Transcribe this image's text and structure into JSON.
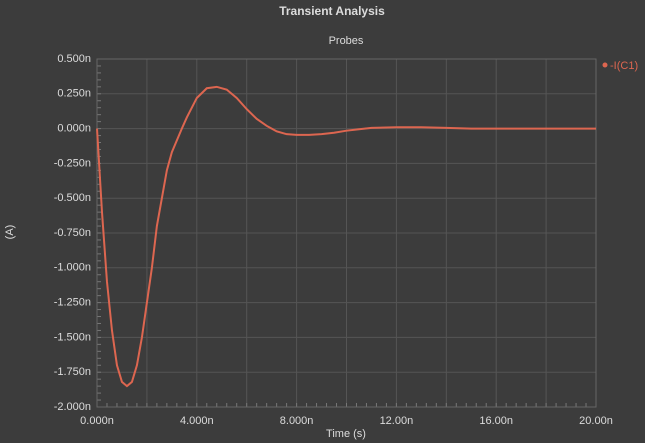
{
  "chart_data": {
    "type": "line",
    "title": "Transient Analysis",
    "subtitle": "Probes",
    "x_label": "Time (s)",
    "y_label": "(A)",
    "x": [
      0,
      2e-10,
      4e-10,
      6e-10,
      8e-10,
      1e-09,
      1.2e-09,
      1.4e-09,
      1.6e-09,
      1.8e-09,
      2e-09,
      2.2e-09,
      2.4e-09,
      2.8e-09,
      3e-09,
      3.4e-09,
      3.6e-09,
      4e-09,
      4.4e-09,
      4.8e-09,
      5.2e-09,
      5.6e-09,
      6e-09,
      6.4e-09,
      6.8e-09,
      7.2e-09,
      7.6e-09,
      8e-09,
      8.5e-09,
      9e-09,
      9.5e-09,
      1e-08,
      1.05e-08,
      1.1e-08,
      1.2e-08,
      1.3e-08,
      1.4e-08,
      1.5e-08,
      2e-08
    ],
    "series": [
      {
        "name": "-I(C1)",
        "color": "#dd6650",
        "values": [
          0,
          -6e-10,
          -1.1e-09,
          -1.45e-09,
          -1.7e-09,
          -1.82e-09,
          -1.85e-09,
          -1.82e-09,
          -1.7e-09,
          -1.5e-09,
          -1.25e-09,
          -1e-09,
          -7e-10,
          -3e-10,
          -1.7e-10,
          0,
          8e-11,
          2.2e-10,
          2.9e-10,
          3e-10,
          2.8e-10,
          2.2e-10,
          1.4e-10,
          7e-11,
          2e-11,
          -2e-11,
          -4e-11,
          -4.5e-11,
          -4.5e-11,
          -4e-11,
          -3e-11,
          -1.5e-11,
          -5e-12,
          5e-12,
          1e-11,
          1e-11,
          5e-12,
          0,
          0
        ]
      }
    ],
    "xlim": [
      0,
      2e-08
    ],
    "ylim": [
      -2e-09,
      5e-10
    ],
    "xticks": [
      {
        "value": 0,
        "label": "0.000n"
      },
      {
        "value": 4e-09,
        "label": "4.000n"
      },
      {
        "value": 8e-09,
        "label": "8.000n"
      },
      {
        "value": 1.2e-08,
        "label": "12.00n"
      },
      {
        "value": 1.6e-08,
        "label": "16.00n"
      },
      {
        "value": 2e-08,
        "label": "20.00n"
      }
    ],
    "yticks": [
      {
        "value": 5e-10,
        "label": "0.500n"
      },
      {
        "value": 2.5e-10,
        "label": "0.250n"
      },
      {
        "value": 0,
        "label": "0.000n"
      },
      {
        "value": -2.5e-10,
        "label": "-0.250n"
      },
      {
        "value": -5e-10,
        "label": "-0.500n"
      },
      {
        "value": -7.5e-10,
        "label": "-0.750n"
      },
      {
        "value": -1e-09,
        "label": "-1.000n"
      },
      {
        "value": -1.25e-09,
        "label": "-1.250n"
      },
      {
        "value": -1.5e-09,
        "label": "-1.500n"
      },
      {
        "value": -1.75e-09,
        "label": "-1.750n"
      },
      {
        "value": -2e-09,
        "label": "-2.000n"
      }
    ],
    "grid": true,
    "legend": "top-right"
  }
}
